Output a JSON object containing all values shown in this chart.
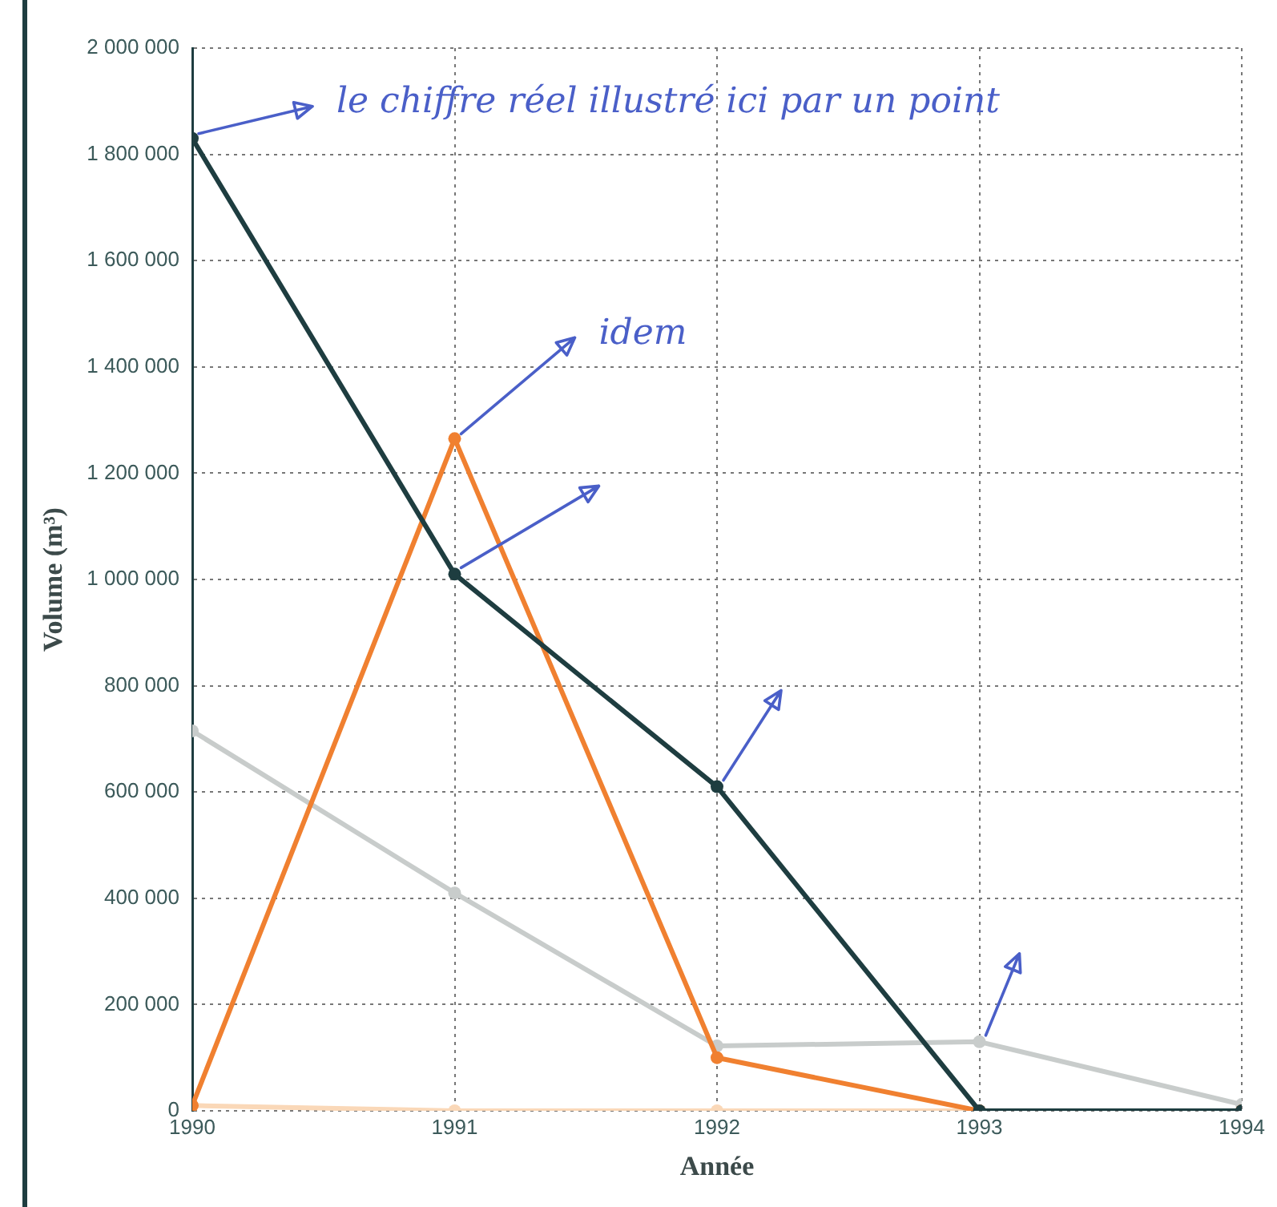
{
  "chart_data": {
    "type": "line",
    "xlabel": "Année",
    "ylabel": "Volume (m³)",
    "x": [
      1990,
      1991,
      1992,
      1993,
      1994
    ],
    "series": [
      {
        "color": "#1e3d40",
        "values": [
          1830000,
          1010000,
          610000,
          0,
          0
        ]
      },
      {
        "color": "#f08030",
        "values": [
          10000,
          1265000,
          100000,
          0,
          0
        ]
      },
      {
        "color": "#c8cccb",
        "values": [
          715000,
          410000,
          122000,
          130000,
          12000
        ]
      },
      {
        "color": "#fad8b8",
        "values": [
          10000,
          0,
          0,
          0,
          0
        ]
      }
    ],
    "xlim": [
      1990,
      1994
    ],
    "xticks": [
      1990,
      1991,
      1992,
      1993,
      1994
    ],
    "ylim": [
      0,
      2000000
    ],
    "yticks": [
      {
        "value": 0,
        "label": "0"
      },
      {
        "value": 200000,
        "label": "200 000"
      },
      {
        "value": 400000,
        "label": "400 000"
      },
      {
        "value": 600000,
        "label": "600 000"
      },
      {
        "value": 800000,
        "label": "800 000"
      },
      {
        "value": 1000000,
        "label": "1 000 000"
      },
      {
        "value": 1200000,
        "label": "1 200 000"
      },
      {
        "value": 1400000,
        "label": "1 400 000"
      },
      {
        "value": 1600000,
        "label": "1 600 000"
      },
      {
        "value": 1800000,
        "label": "1 800 000"
      },
      {
        "value": 2000000,
        "label": "2 000 000"
      }
    ],
    "grid": true,
    "legend": false,
    "marker": "circle",
    "line_style": "solid",
    "annotations": [
      {
        "text": "le chiffre réel illustré ici par un point",
        "x": 1990,
        "y": 1830000
      },
      {
        "text": "idem",
        "x": 1991,
        "y": 1265000
      }
    ]
  }
}
